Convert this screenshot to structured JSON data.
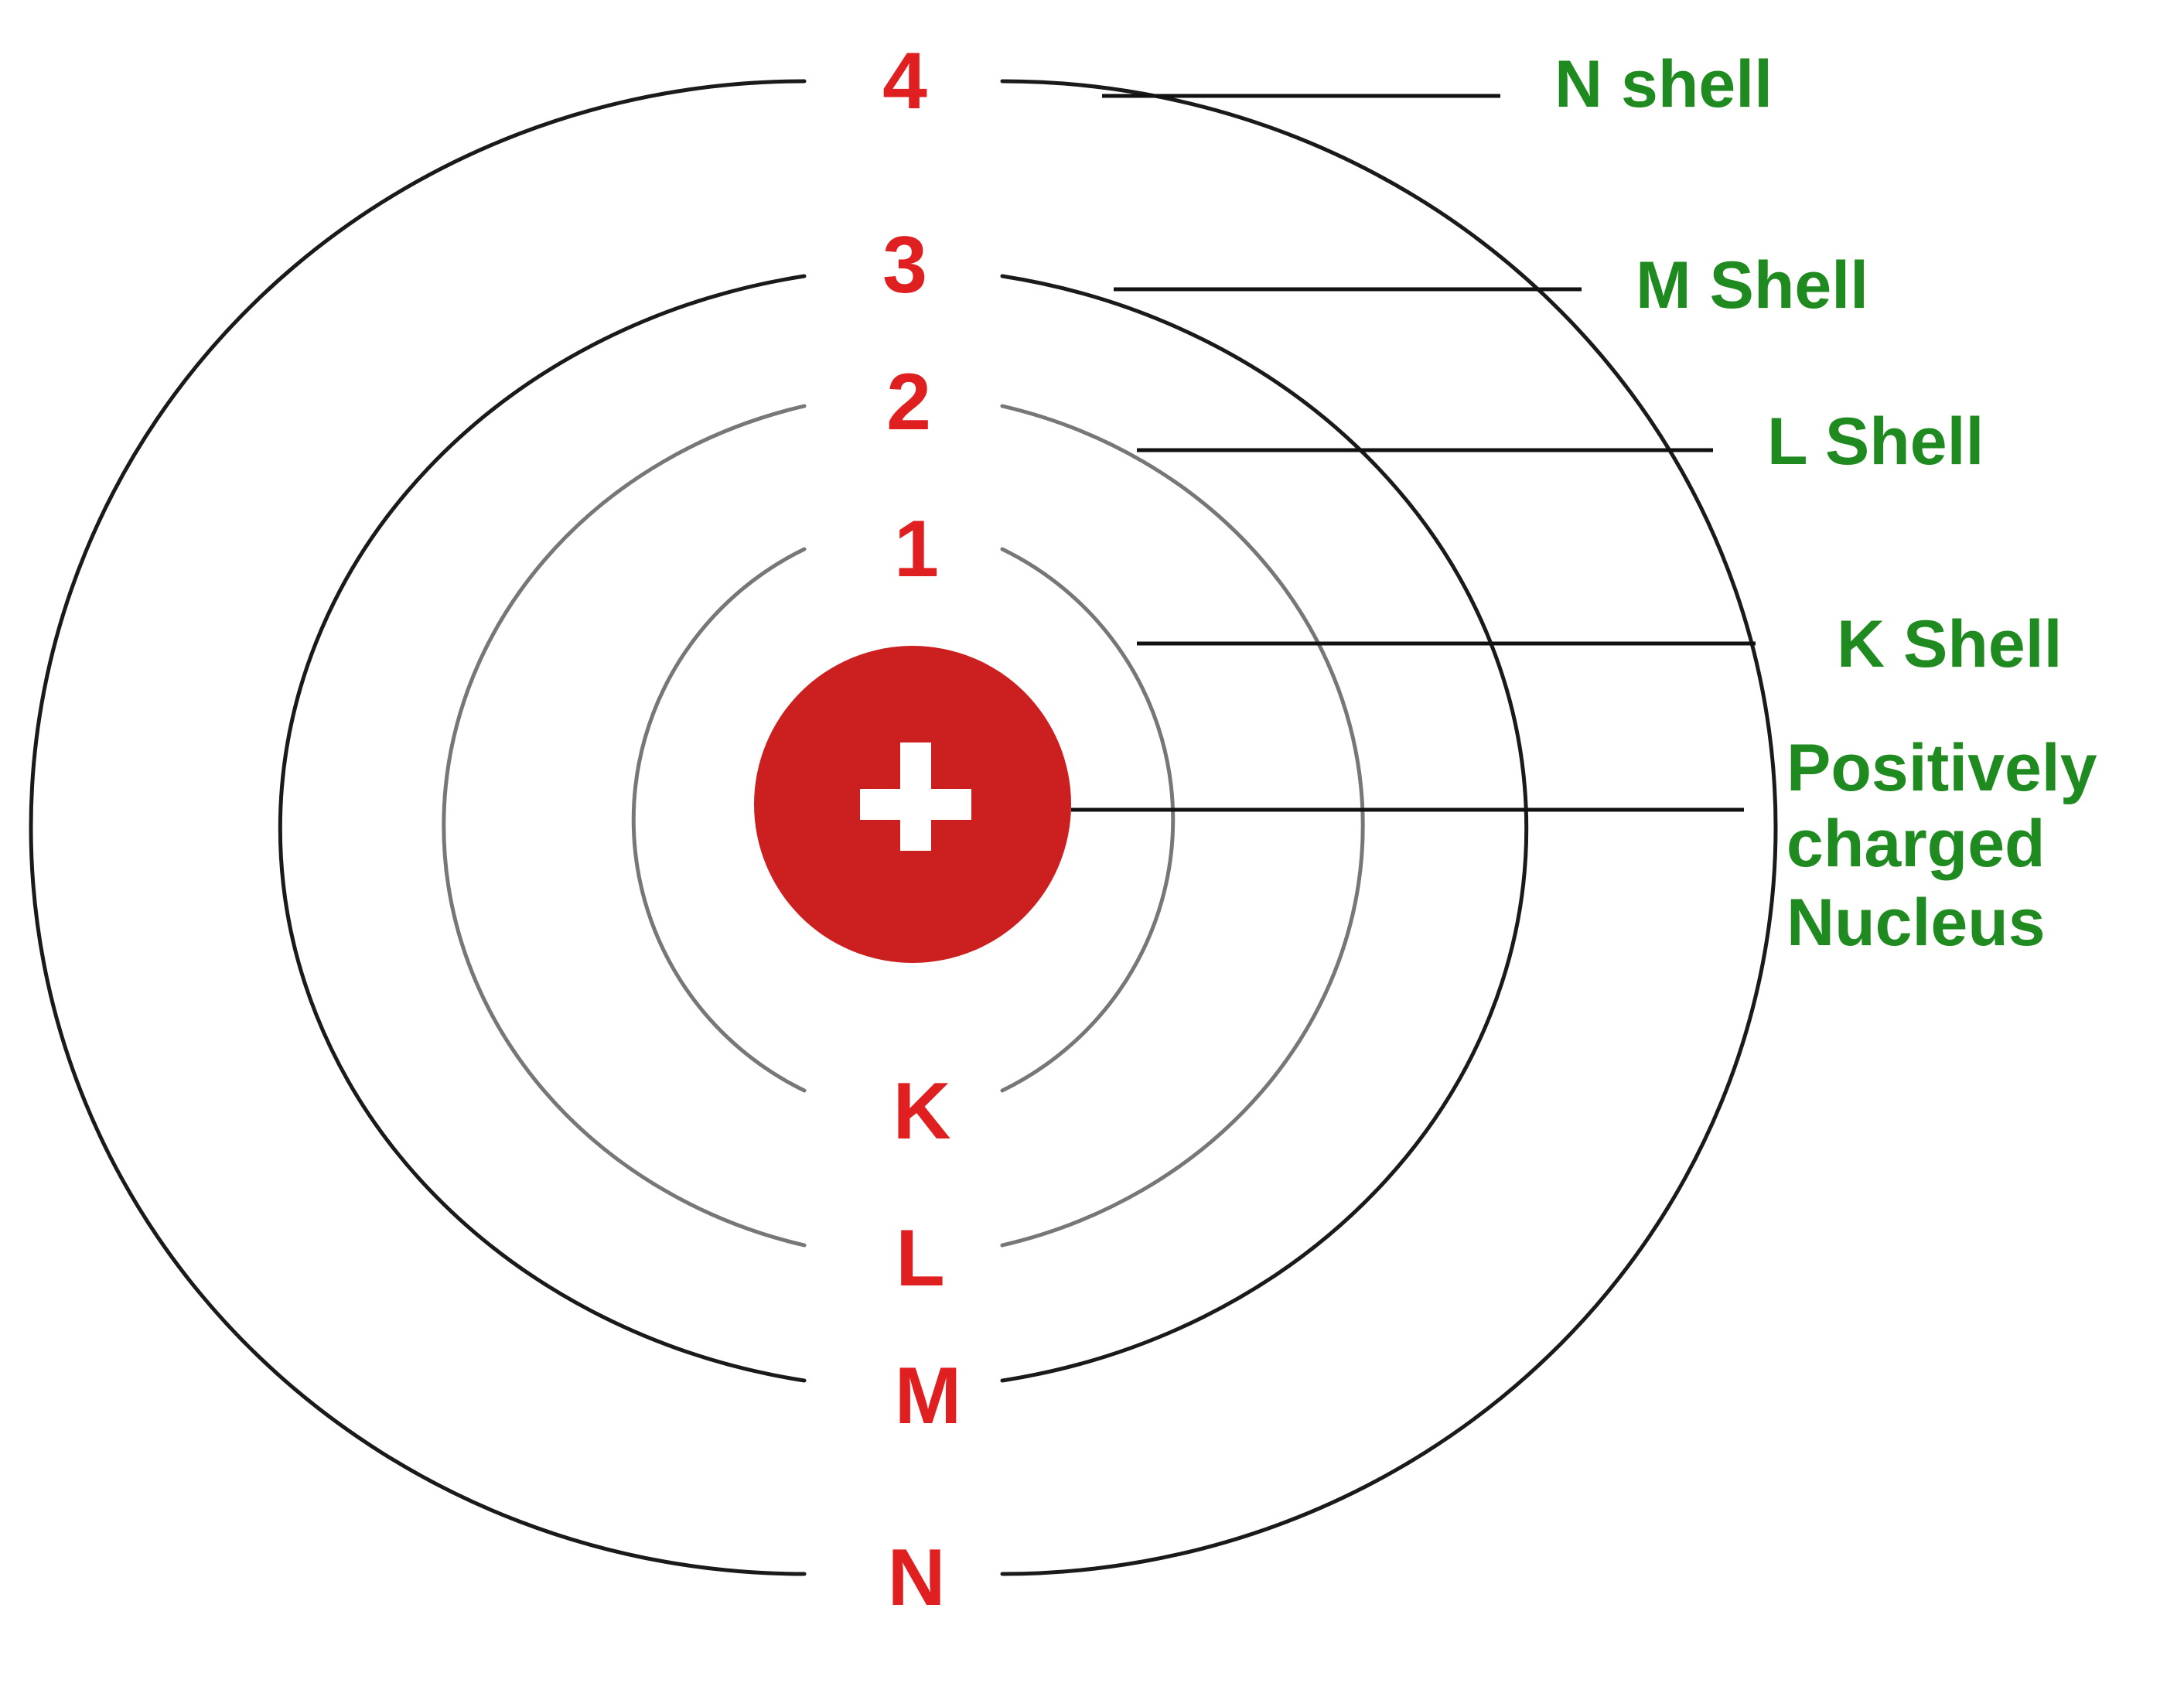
{
  "colors": {
    "shell_line": "#1a1a1a",
    "inner_shell_line": "#777777",
    "number_label": "#e02020",
    "letter_label": "#e02020",
    "shell_name": "#1f8a1f",
    "nucleus_fill": "#cc1f1f",
    "nucleus_symbol": "#ffffff"
  },
  "nucleus": {
    "symbol": "+",
    "label_lines": [
      "Positively",
      "charged",
      "Nucleus"
    ]
  },
  "shells": [
    {
      "number": "1",
      "letter": "K",
      "name": "K Shell"
    },
    {
      "number": "2",
      "letter": "L",
      "name": "L Shell"
    },
    {
      "number": "3",
      "letter": "M",
      "name": "M Shell"
    },
    {
      "number": "4",
      "letter": "N",
      "name": "N shell"
    }
  ]
}
